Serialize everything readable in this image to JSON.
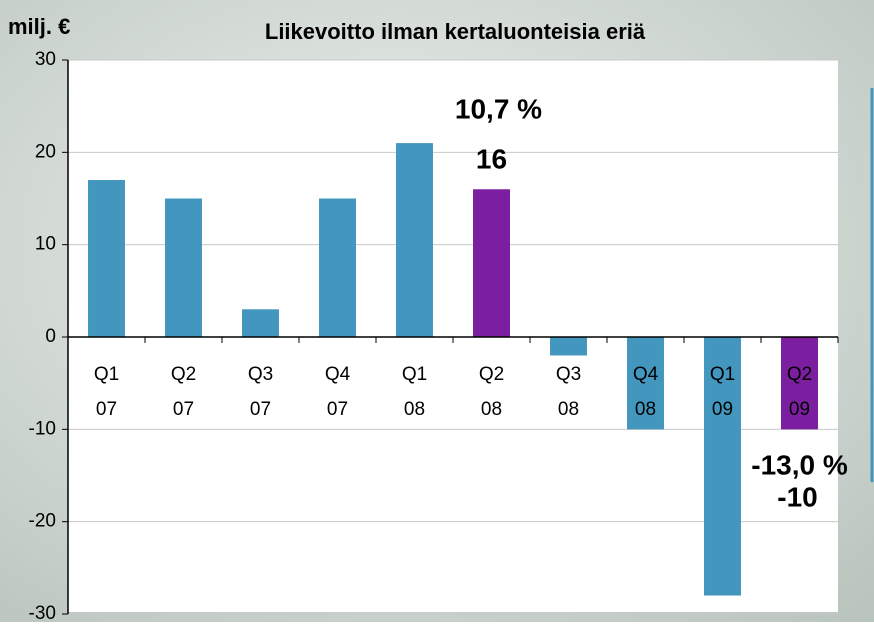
{
  "chart_data": {
    "type": "bar",
    "title": "Liikevoitto ilman kertaluonteisia eriä",
    "ylabel": "milj. €",
    "categories": [
      [
        "Q1",
        "07"
      ],
      [
        "Q2",
        "07"
      ],
      [
        "Q3",
        "07"
      ],
      [
        "Q4",
        "07"
      ],
      [
        "Q1",
        "08"
      ],
      [
        "Q2",
        "08"
      ],
      [
        "Q3",
        "08"
      ],
      [
        "Q4",
        "08"
      ],
      [
        "Q1",
        "09"
      ],
      [
        "Q2",
        "09"
      ]
    ],
    "values": [
      17,
      15,
      3,
      15,
      21,
      16,
      -2,
      -10,
      -28,
      -10
    ],
    "colors": [
      "#4397bf",
      "#4397bf",
      "#4397bf",
      "#4397bf",
      "#4397bf",
      "#7b1fa0",
      "#4397bf",
      "#4397bf",
      "#4397bf",
      "#7b1fa0"
    ],
    "ylim": [
      -30,
      30
    ],
    "yticks": [
      -30,
      -20,
      -10,
      0,
      10,
      20,
      30
    ],
    "grid": true,
    "annotations": [
      {
        "text": "10,7 %",
        "index": 5
      },
      {
        "text": "-13,0 %",
        "index": 9
      }
    ],
    "labeled_indices": [
      5,
      9
    ]
  }
}
